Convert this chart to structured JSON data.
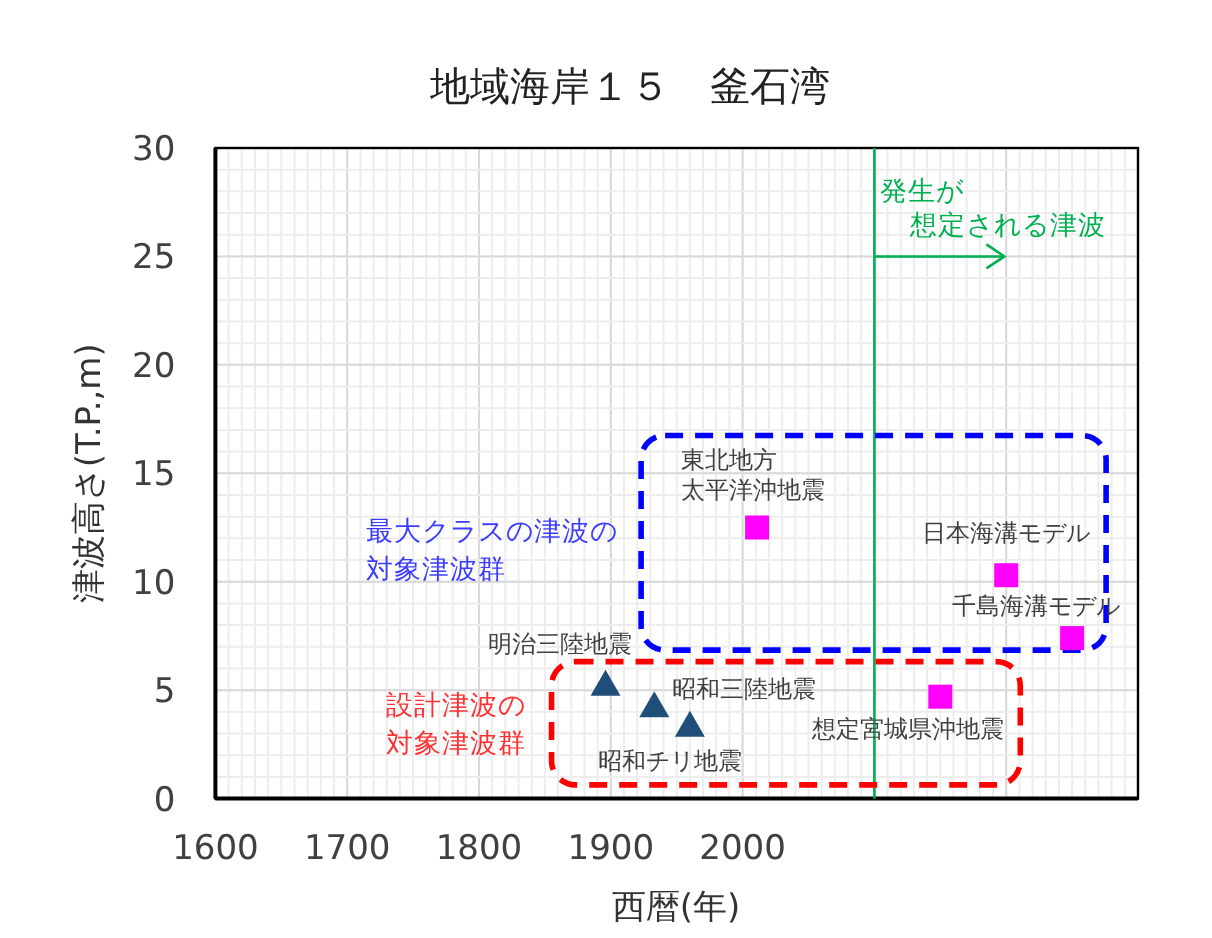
{
  "chart_data": {
    "type": "scatter",
    "title": "地域海岸１５　釜石湾",
    "xlabel": "西暦(年)",
    "ylabel": "津波高さ(T.P.,m)",
    "xlim": [
      1600,
      2300
    ],
    "ylim": [
      0,
      30
    ],
    "xticks": [
      1600,
      1700,
      1800,
      1900,
      2000,
      {
        "value": 2100,
        "label": null
      },
      {
        "value": 2200,
        "label": null
      },
      {
        "value": 2300,
        "label": null
      }
    ],
    "yticks": [
      0,
      5,
      10,
      15,
      20,
      25,
      30
    ],
    "grid": true,
    "series": [
      {
        "type": "scatter",
        "color": "#1f4e79",
        "marker": "triangle",
        "x": [
          1896,
          1933,
          1960
        ],
        "values": [
          5.3,
          4.3,
          3.4
        ]
      },
      {
        "type": "scatter",
        "color": "#ff00ff",
        "marker": "square",
        "x": [
          2011,
          2200,
          2250
        ],
        "values": [
          12.5,
          10.3,
          7.4
        ]
      },
      {
        "type": "scatter",
        "color": "#ff00ff",
        "marker": "square",
        "x": [
          2150
        ],
        "values": [
          4.7
        ]
      }
    ],
    "ref_lines": [
      {
        "axis": "x",
        "value": 2100,
        "label": "発生が想定される津波",
        "color": "#00b050"
      }
    ],
    "annotations": [
      {
        "text": "明治三陸地震",
        "x": 1896,
        "y": 5.3
      },
      {
        "text": "昭和三陸地震",
        "x": 1933,
        "y": 4.3
      },
      {
        "text": "昭和チリ地震",
        "x": 1960,
        "y": 3.4
      },
      {
        "text": "東北地方太平洋沖地震",
        "x": 2011,
        "y": 12.5
      },
      {
        "text": "日本海溝モデル",
        "x": 2200,
        "y": 10.3
      },
      {
        "text": "千島海溝モデル",
        "x": 2250,
        "y": 7.4
      },
      {
        "text": "想定宮城県沖地震",
        "x": 2150,
        "y": 4.7
      },
      "最大クラスの津波の対象津波群",
      "設計津波の対象津波群"
    ]
  }
}
